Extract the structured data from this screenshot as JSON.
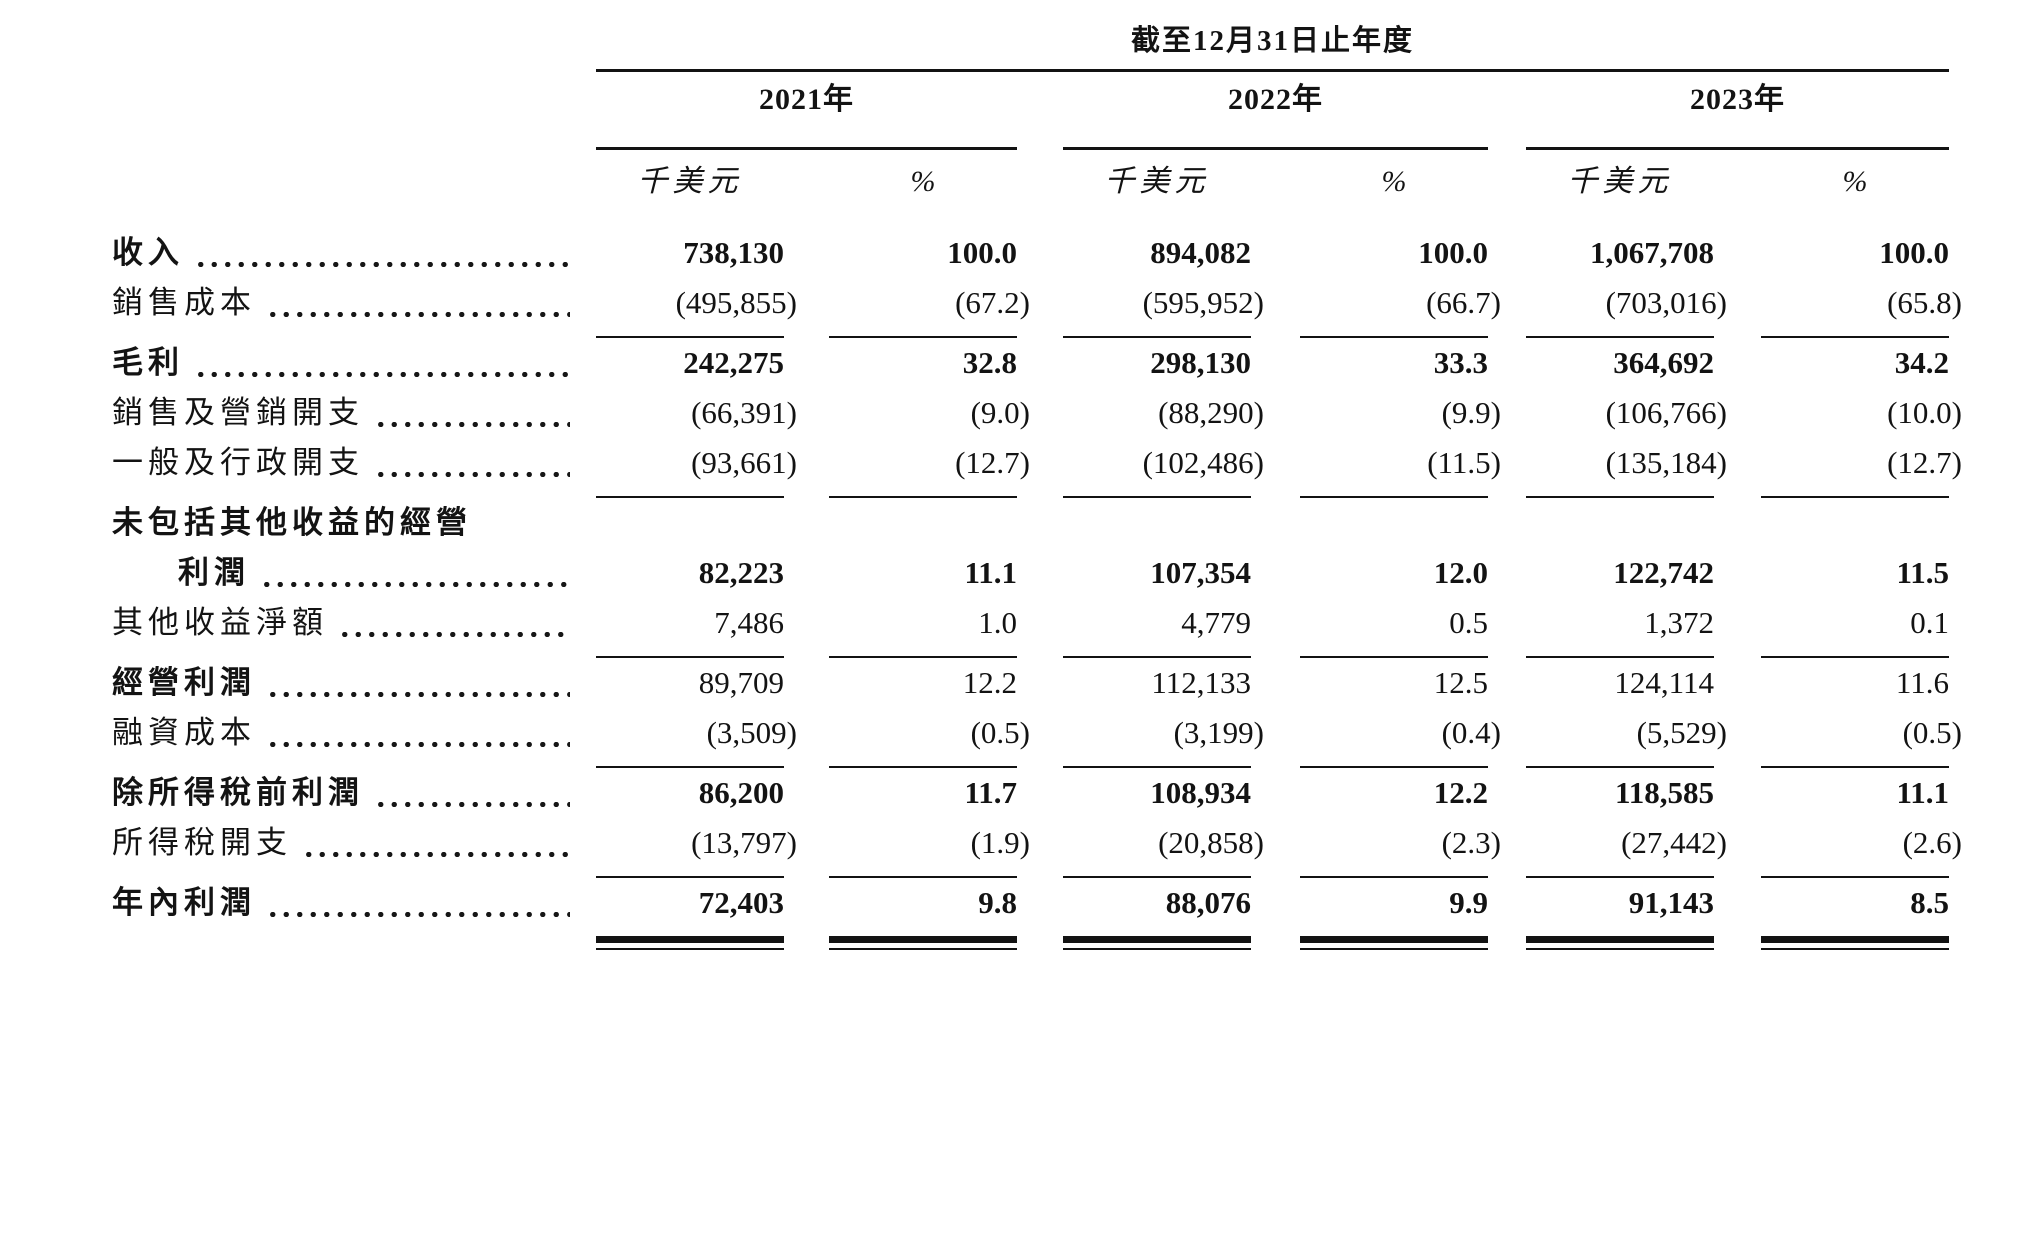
{
  "table": {
    "period_header": "截至12月31日止年度",
    "year_groups": [
      {
        "year": "2021年",
        "unit": "千美元",
        "pct": "%"
      },
      {
        "year": "2022年",
        "unit": "千美元",
        "pct": "%"
      },
      {
        "year": "2023年",
        "unit": "千美元",
        "pct": "%"
      }
    ],
    "rows": [
      {
        "label": "收入",
        "leader": true,
        "bold_label": true,
        "bold_values": true,
        "values": [
          "738,130",
          "100.0",
          "894,082",
          "100.0",
          "1,067,708",
          "100.0"
        ],
        "rule_after": null
      },
      {
        "label": "銷售成本",
        "leader": true,
        "bold_label": false,
        "bold_values": false,
        "values": [
          "(495,855)",
          "(67.2)",
          "(595,952)",
          "(66.7)",
          "(703,016)",
          "(65.8)"
        ],
        "rule_after": "single"
      },
      {
        "label": "毛利",
        "leader": true,
        "bold_label": true,
        "bold_values": true,
        "values": [
          "242,275",
          "32.8",
          "298,130",
          "33.3",
          "364,692",
          "34.2"
        ],
        "rule_after": null
      },
      {
        "label": "銷售及營銷開支",
        "leader": true,
        "bold_label": false,
        "bold_values": false,
        "values": [
          "(66,391)",
          "(9.0)",
          "(88,290)",
          "(9.9)",
          "(106,766)",
          "(10.0)"
        ],
        "rule_after": null
      },
      {
        "label": "一般及行政開支",
        "leader": true,
        "bold_label": false,
        "bold_values": false,
        "values": [
          "(93,661)",
          "(12.7)",
          "(102,486)",
          "(11.5)",
          "(135,184)",
          "(12.7)"
        ],
        "rule_after": "single"
      },
      {
        "label": "未包括其他收益的經營",
        "leader": false,
        "bold_label": true,
        "bold_values": false,
        "values": [
          "",
          "",
          "",
          "",
          "",
          ""
        ],
        "rule_after": null
      },
      {
        "label": "利潤",
        "indent": true,
        "leader": true,
        "bold_label": true,
        "bold_values": true,
        "values": [
          "82,223",
          "11.1",
          "107,354",
          "12.0",
          "122,742",
          "11.5"
        ],
        "rule_after": null
      },
      {
        "label": "其他收益淨額",
        "leader": true,
        "bold_label": false,
        "bold_values": false,
        "values": [
          "7,486",
          "1.0",
          "4,779",
          "0.5",
          "1,372",
          "0.1"
        ],
        "rule_after": "single"
      },
      {
        "label": "經營利潤",
        "leader": true,
        "bold_label": true,
        "bold_values": false,
        "values": [
          "89,709",
          "12.2",
          "112,133",
          "12.5",
          "124,114",
          "11.6"
        ],
        "rule_after": null
      },
      {
        "label": "融資成本",
        "leader": true,
        "bold_label": false,
        "bold_values": false,
        "values": [
          "(3,509)",
          "(0.5)",
          "(3,199)",
          "(0.4)",
          "(5,529)",
          "(0.5)"
        ],
        "rule_after": "single"
      },
      {
        "label": "除所得稅前利潤",
        "leader": true,
        "bold_label": true,
        "bold_values": true,
        "values": [
          "86,200",
          "11.7",
          "108,934",
          "12.2",
          "118,585",
          "11.1"
        ],
        "rule_after": null
      },
      {
        "label": "所得稅開支",
        "leader": true,
        "bold_label": false,
        "bold_values": false,
        "values": [
          "(13,797)",
          "(1.9)",
          "(20,858)",
          "(2.3)",
          "(27,442)",
          "(2.6)"
        ],
        "rule_after": "single"
      },
      {
        "label": "年內利潤",
        "leader": true,
        "bold_label": true,
        "bold_values": true,
        "values": [
          "72,403",
          "9.8",
          "88,076",
          "9.9",
          "91,143",
          "8.5"
        ],
        "rule_after": "double"
      }
    ]
  }
}
